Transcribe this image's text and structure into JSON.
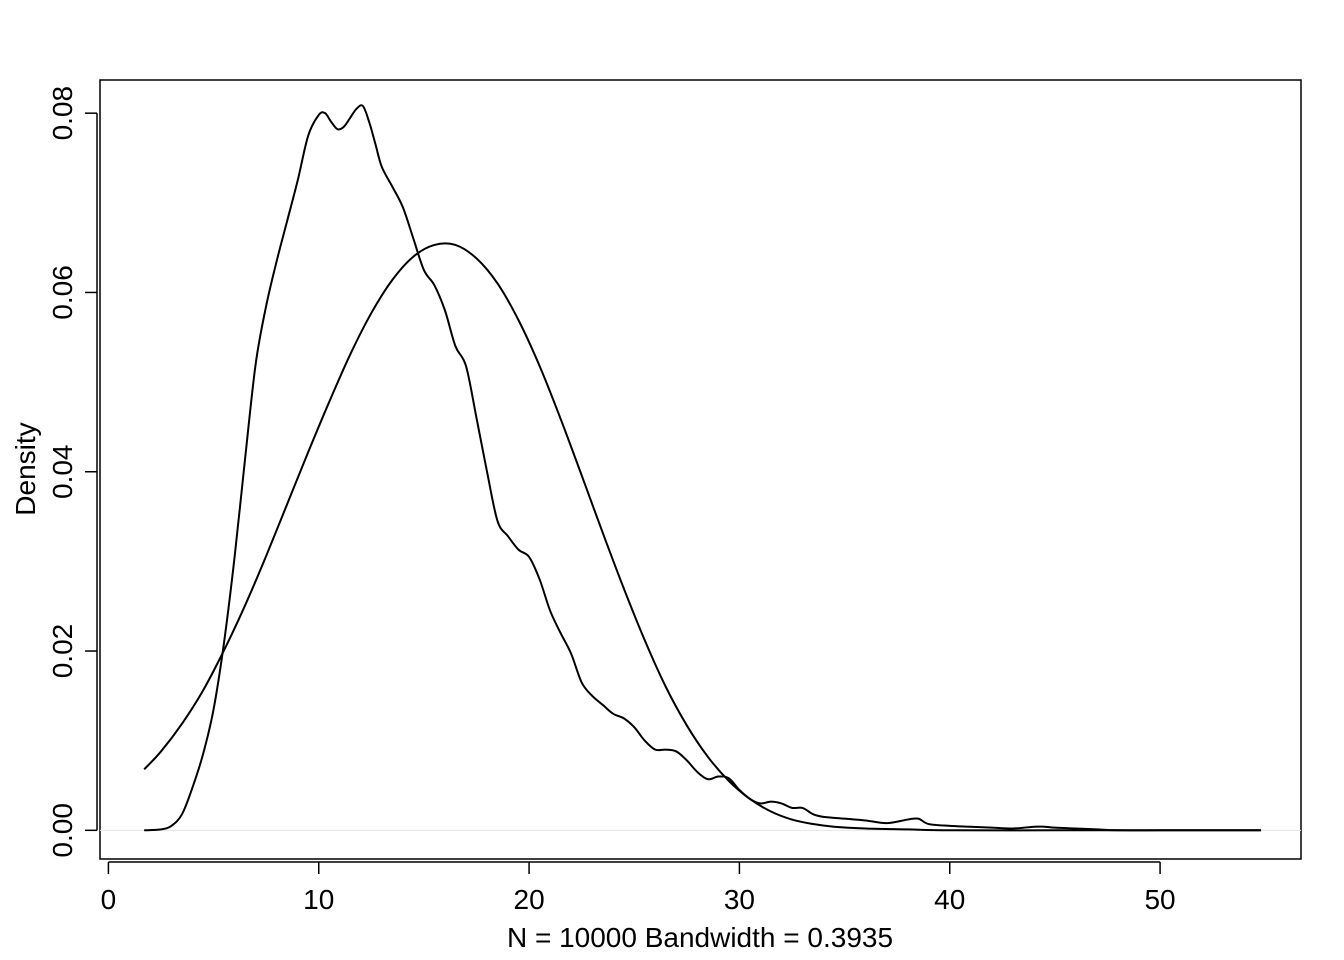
{
  "chart_data": {
    "type": "line",
    "title": "",
    "xlabel": "N = 10000   Bandwidth = 0.3935",
    "ylabel": "Density",
    "xlim": [
      -0.4,
      56.7
    ],
    "ylim": [
      -0.0032,
      0.0837
    ],
    "x_ticks": [
      0,
      10,
      20,
      30,
      40,
      50
    ],
    "x_tick_labels": [
      "0",
      "10",
      "20",
      "30",
      "40",
      "50"
    ],
    "y_ticks": [
      0.0,
      0.02,
      0.04,
      0.06,
      0.08
    ],
    "y_tick_labels": [
      "0.00",
      "0.02",
      "0.04",
      "0.06",
      "0.08"
    ],
    "grid": false,
    "series": [
      {
        "x": [
          1.7,
          2.5,
          3.0,
          3.5,
          4.0,
          4.5,
          5.0,
          5.5,
          6.0,
          6.5,
          7.0,
          7.5,
          8.0,
          8.5,
          9.0,
          9.5,
          10.0,
          10.3,
          10.6,
          10.9,
          11.2,
          11.5,
          11.8,
          12.1,
          12.4,
          12.7,
          13.0,
          13.5,
          14.0,
          14.5,
          15.0,
          15.5,
          16.0,
          16.5,
          17.0,
          17.5,
          18.0,
          18.5,
          19.0,
          19.5,
          20.0,
          20.5,
          21.0,
          21.5,
          22.0,
          22.5,
          23.0,
          23.5,
          24.0,
          24.5,
          25.0,
          25.5,
          26.0,
          26.5,
          27.0,
          27.5,
          28.0,
          28.5,
          29.0,
          29.5,
          30.0,
          30.5,
          31.0,
          31.5,
          32.0,
          32.5,
          33.0,
          33.5,
          34.0,
          35.0,
          36.0,
          37.0,
          38.0,
          38.5,
          39.0,
          40.0,
          41.0,
          42.0,
          43.0,
          44.0,
          44.5,
          45.0,
          46.0,
          47.0,
          48.0,
          50.0,
          52.0,
          54.8
        ],
        "y": [
          0.0,
          0.0001,
          0.0005,
          0.0018,
          0.0048,
          0.0085,
          0.0135,
          0.021,
          0.0305,
          0.0415,
          0.052,
          0.0585,
          0.0635,
          0.068,
          0.0725,
          0.0775,
          0.0798,
          0.08,
          0.079,
          0.0782,
          0.0785,
          0.0795,
          0.0805,
          0.0808,
          0.079,
          0.0765,
          0.074,
          0.0718,
          0.0695,
          0.066,
          0.0625,
          0.0608,
          0.058,
          0.054,
          0.0518,
          0.046,
          0.04,
          0.0345,
          0.0328,
          0.0313,
          0.0305,
          0.028,
          0.0245,
          0.022,
          0.0197,
          0.0165,
          0.015,
          0.014,
          0.013,
          0.0125,
          0.0115,
          0.01,
          0.009,
          0.009,
          0.0088,
          0.0078,
          0.0065,
          0.0057,
          0.006,
          0.0058,
          0.0045,
          0.0035,
          0.003,
          0.0032,
          0.003,
          0.0025,
          0.0025,
          0.0018,
          0.0015,
          0.0013,
          0.0011,
          0.0008,
          0.0012,
          0.0013,
          0.0007,
          0.0005,
          0.0004,
          0.0003,
          0.0002,
          0.0004,
          0.0004,
          0.0003,
          0.0002,
          0.0001,
          0.0,
          0.0,
          0.0,
          0.0
        ]
      },
      {
        "x": [
          1.7,
          2.5,
          3.5,
          4.5,
          5.5,
          6.5,
          7.5,
          8.5,
          9.5,
          10.5,
          11.5,
          12.5,
          13.5,
          14.5,
          15.5,
          16.5,
          17.5,
          18.5,
          19.5,
          20.5,
          21.5,
          22.5,
          23.5,
          24.5,
          25.5,
          26.5,
          27.5,
          28.5,
          29.5,
          30.5,
          31.5,
          32.5,
          33.5,
          34.5,
          36.0,
          38.0,
          40.0,
          45.0,
          50.0,
          54.8
        ],
        "y": [
          0.0068,
          0.0088,
          0.0119,
          0.0156,
          0.0201,
          0.0251,
          0.0306,
          0.0364,
          0.0422,
          0.0478,
          0.0531,
          0.0577,
          0.0614,
          0.064,
          0.0653,
          0.0653,
          0.0638,
          0.061,
          0.0569,
          0.0518,
          0.0459,
          0.0396,
          0.0332,
          0.027,
          0.0212,
          0.016,
          0.0117,
          0.0082,
          0.0055,
          0.0035,
          0.0021,
          0.0012,
          0.0007,
          0.0004,
          0.0002,
          0.0001,
          0.0,
          0.0,
          0.0,
          0.0
        ]
      }
    ]
  }
}
